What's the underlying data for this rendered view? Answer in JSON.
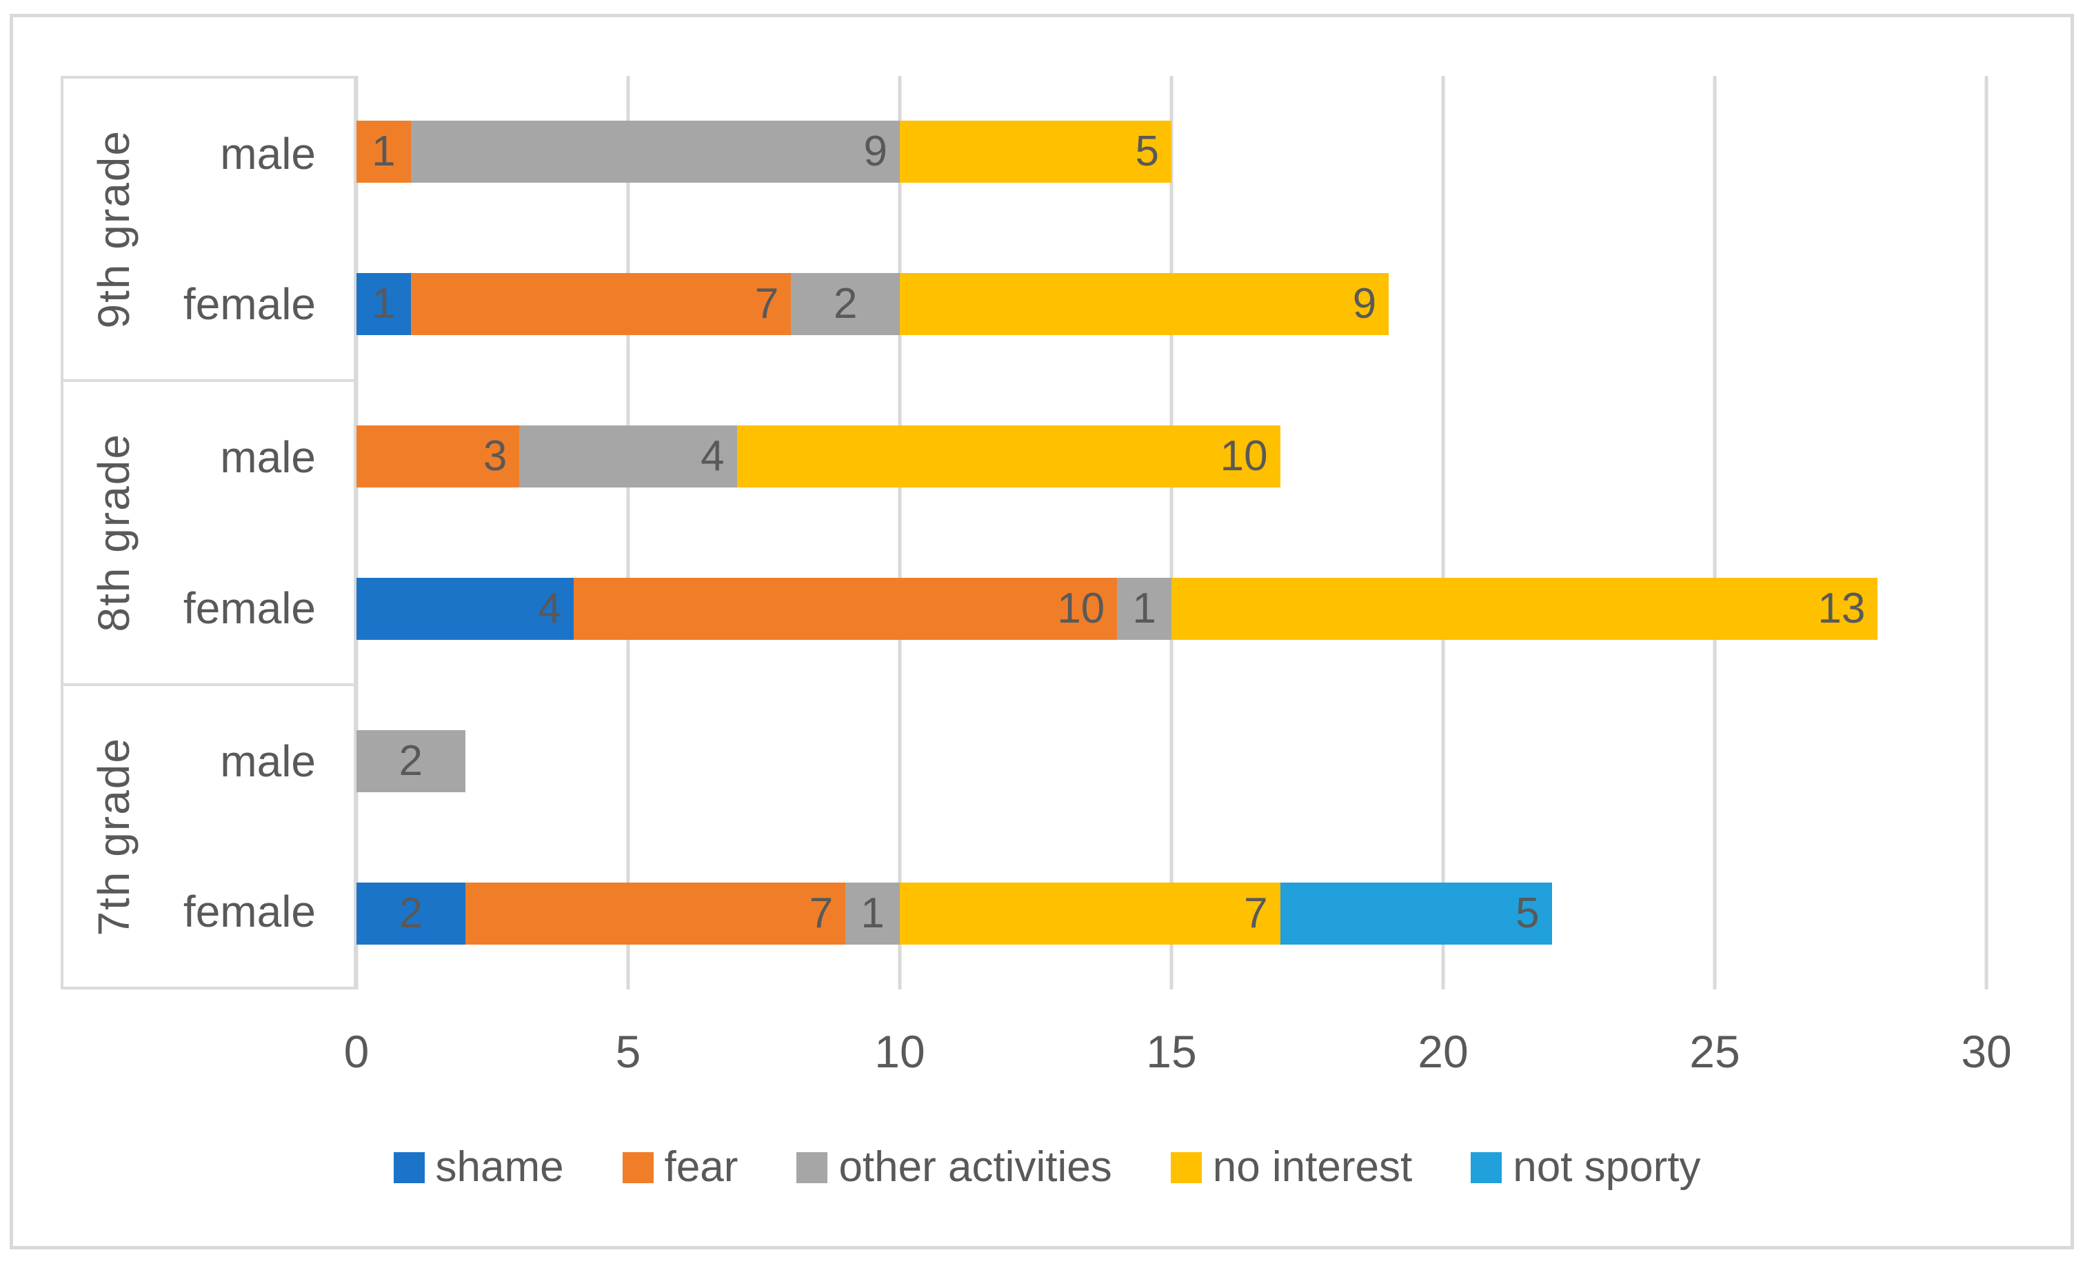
{
  "text_color": "#595959",
  "gridline_color": "#D9D9D9",
  "panel_border_color": "#DBDBDB",
  "frame_border_color": "#D9D9D9",
  "background_color": "#FFFFFF",
  "chart_data": {
    "type": "bar",
    "orientation": "horizontal",
    "stacked": true,
    "title": "",
    "xlabel": "",
    "ylabel": "",
    "xlim": [
      0,
      30
    ],
    "x_ticks": [
      "0",
      "5",
      "10",
      "15",
      "20",
      "25",
      "30"
    ],
    "grid": true,
    "legend_position": "bottom",
    "series": [
      {
        "name": "shame",
        "color": "#1B74C8"
      },
      {
        "name": "fear",
        "color": "#F07E28"
      },
      {
        "name": "other activities",
        "color": "#A6A6A6"
      },
      {
        "name": "no interest",
        "color": "#FFC000"
      },
      {
        "name": "not sporty",
        "color": "#21A0DB"
      }
    ],
    "grade_groups": [
      {
        "grade": "9th grade",
        "bars": [
          {
            "gender": "male",
            "values": [
              0,
              1,
              9,
              5,
              0
            ],
            "total": 15
          },
          {
            "gender": "female",
            "values": [
              1,
              7,
              2,
              9,
              0
            ],
            "total": 19
          }
        ]
      },
      {
        "grade": "8th grade",
        "bars": [
          {
            "gender": "male",
            "values": [
              0,
              3,
              4,
              10,
              0
            ],
            "total": 17
          },
          {
            "gender": "female",
            "values": [
              4,
              10,
              1,
              13,
              0
            ],
            "total": 28
          }
        ]
      },
      {
        "grade": "7th grade",
        "bars": [
          {
            "gender": "male",
            "values": [
              0,
              0,
              2,
              0,
              0
            ],
            "total": 2
          },
          {
            "gender": "female",
            "values": [
              2,
              7,
              1,
              7,
              5
            ],
            "total": 22
          }
        ]
      }
    ],
    "data_labels_note": "segment values shown inside bars; zero-value segments hidden"
  }
}
